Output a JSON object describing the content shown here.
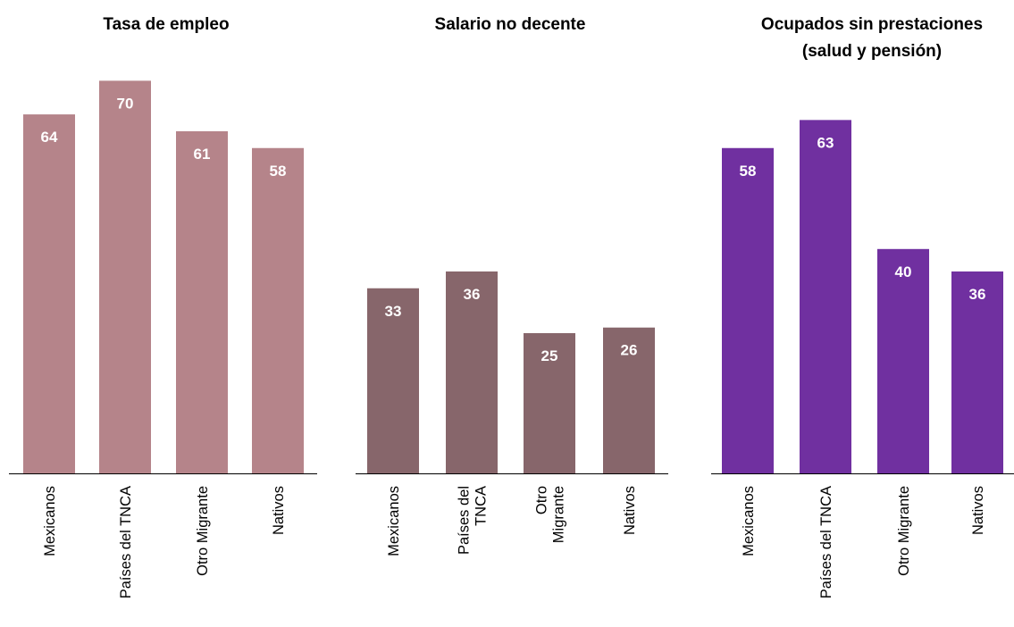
{
  "chart_data": [
    {
      "type": "bar",
      "title": [
        "Tasa de empleo"
      ],
      "categories": [
        [
          "Mexicanos"
        ],
        [
          "Países del TNCA"
        ],
        [
          "Otro Migrante"
        ],
        [
          "Nativos"
        ]
      ],
      "values": [
        64,
        70,
        61,
        58
      ],
      "color": "#b5848a",
      "ylim": [
        0,
        80
      ],
      "grid": false,
      "data_labels": true
    },
    {
      "type": "bar",
      "title": [
        "Salario no decente"
      ],
      "categories": [
        [
          "Mexicanos"
        ],
        [
          "Países del",
          "TNCA"
        ],
        [
          "Otro",
          "Migrante"
        ],
        [
          "Nativos"
        ]
      ],
      "values": [
        33,
        36,
        25,
        26
      ],
      "color": "#87666b",
      "ylim": [
        0,
        80
      ],
      "grid": false,
      "data_labels": true
    },
    {
      "type": "bar",
      "title": [
        "Ocupados sin prestaciones",
        "(salud y pensión)"
      ],
      "categories": [
        [
          "Mexicanos"
        ],
        [
          "Países del TNCA"
        ],
        [
          "Otro Migrante"
        ],
        [
          "Nativos"
        ]
      ],
      "values": [
        58,
        63,
        40,
        36
      ],
      "color": "#7030a0",
      "ylim": [
        0,
        80
      ],
      "grid": false,
      "data_labels": true
    }
  ]
}
